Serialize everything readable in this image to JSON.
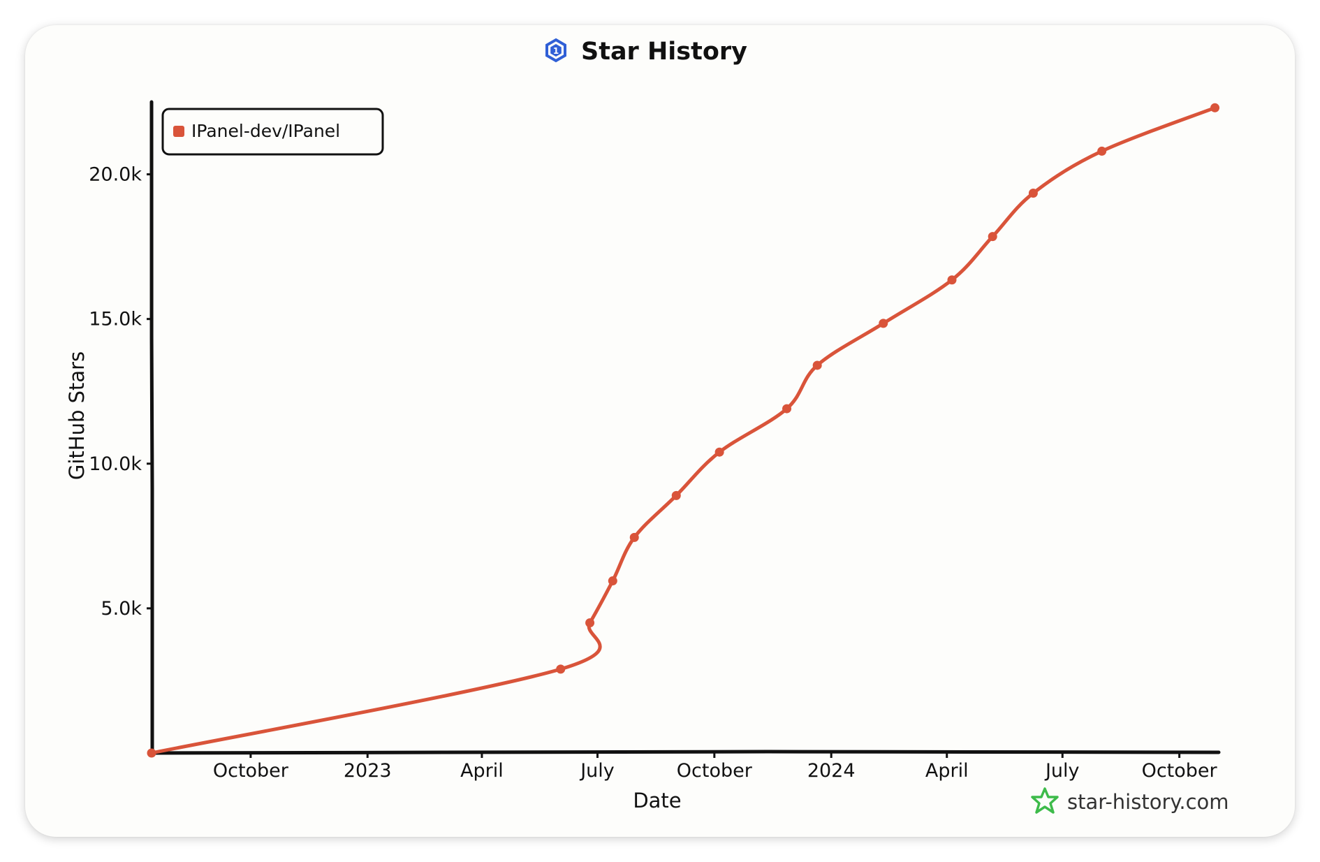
{
  "colors": {
    "series": "#d9543a",
    "axis": "#111111",
    "logo": "#2f5fd6",
    "watermark_icon": "#3dbb4a"
  },
  "header": {
    "title": "Star History",
    "logo_icon": "hexagon-1-logo-icon"
  },
  "watermark": {
    "text": "star-history.com",
    "icon": "star-outline-icon"
  },
  "chart_data": {
    "type": "line",
    "title": "Star History",
    "xlabel": "Date",
    "ylabel": "GitHub Stars",
    "x_ticks": [
      "October",
      "2023",
      "April",
      "July",
      "October",
      "2024",
      "April",
      "July",
      "October"
    ],
    "y_ticks": [
      "5.0k",
      "10.0k",
      "15.0k",
      "20.0k"
    ],
    "ylim": [
      0,
      22500
    ],
    "xlim": [
      "2022-07-15",
      "2024-11-01"
    ],
    "grid": false,
    "legend_position": "top-left",
    "series": [
      {
        "name": "IPanel-dev/IPanel",
        "points": [
          {
            "x": "2022-07-15",
            "y": 0
          },
          {
            "x": "2023-06-02",
            "y": 2900
          },
          {
            "x": "2023-06-25",
            "y": 4500
          },
          {
            "x": "2023-07-13",
            "y": 5950
          },
          {
            "x": "2023-07-30",
            "y": 7450
          },
          {
            "x": "2023-09-01",
            "y": 8900
          },
          {
            "x": "2023-10-05",
            "y": 10400
          },
          {
            "x": "2023-11-27",
            "y": 11900
          },
          {
            "x": "2023-12-21",
            "y": 13400
          },
          {
            "x": "2024-02-11",
            "y": 14850
          },
          {
            "x": "2024-04-05",
            "y": 16350
          },
          {
            "x": "2024-05-07",
            "y": 17850
          },
          {
            "x": "2024-06-08",
            "y": 19350
          },
          {
            "x": "2024-08-01",
            "y": 20800
          },
          {
            "x": "2024-10-29",
            "y": 22300
          }
        ]
      }
    ]
  }
}
